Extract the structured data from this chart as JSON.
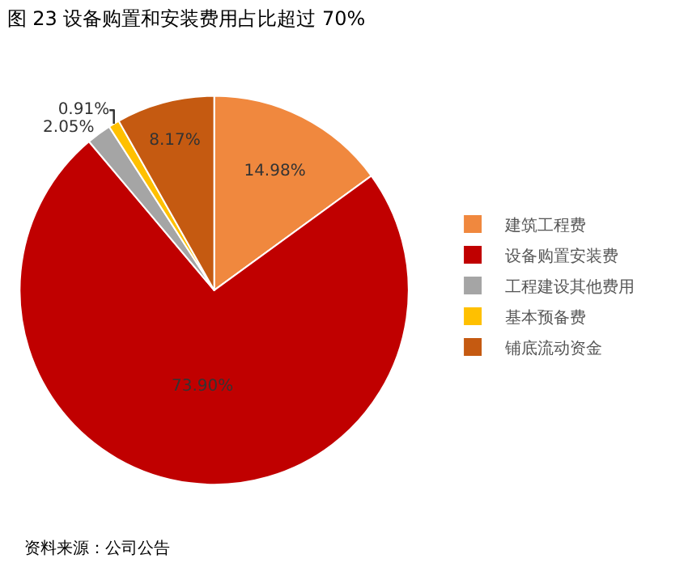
{
  "chart_data": {
    "type": "pie",
    "title": "图 23 设备购置和安装费用占比超过 70%",
    "categories": [
      "建筑工程费",
      "设备购置安装费",
      "工程建设其他费用",
      "基本预备费",
      "铺底流动资金"
    ],
    "values": [
      14.98,
      73.9,
      2.05,
      0.91,
      8.17
    ],
    "colors": [
      "#f0883e",
      "#c00000",
      "#a5a5a5",
      "#ffc000",
      "#c55a11"
    ],
    "value_labels": [
      "14.98%",
      "73.90%",
      "2.05%",
      "0.91%",
      "8.17%"
    ],
    "legend": "right",
    "annotations": [
      "资料来源：公司公告"
    ]
  }
}
